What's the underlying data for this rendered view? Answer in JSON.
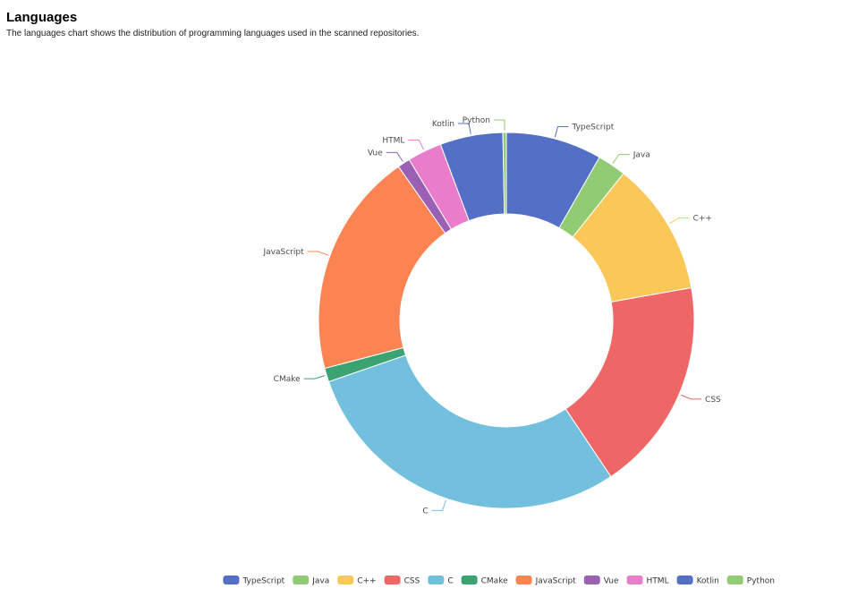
{
  "header": {
    "title": "Languages",
    "subtitle": "The languages chart shows the distribution of programming languages used in the scanned repositories."
  },
  "chart_data": {
    "type": "pie",
    "variant": "donut",
    "legend_position": "bottom-right",
    "slices": [
      {
        "name": "TypeScript",
        "value": 8.4,
        "color": "#5470c6"
      },
      {
        "name": "Java",
        "value": 2.5,
        "color": "#91cc75"
      },
      {
        "name": "C++",
        "value": 11.7,
        "color": "#fac858"
      },
      {
        "name": "CSS",
        "value": 18.7,
        "color": "#ee6666"
      },
      {
        "name": "C",
        "value": 29.6,
        "color": "#73c0de"
      },
      {
        "name": "CMake",
        "value": 1.2,
        "color": "#3ba272"
      },
      {
        "name": "JavaScript",
        "value": 19.7,
        "color": "#fc8452"
      },
      {
        "name": "Vue",
        "value": 1.1,
        "color": "#9a60b4"
      },
      {
        "name": "HTML",
        "value": 3.0,
        "color": "#ea7ccc"
      },
      {
        "name": "Kotlin",
        "value": 5.5,
        "color": "#5470c6"
      },
      {
        "name": "Python",
        "value": 0.3,
        "color": "#91cc75"
      }
    ]
  }
}
